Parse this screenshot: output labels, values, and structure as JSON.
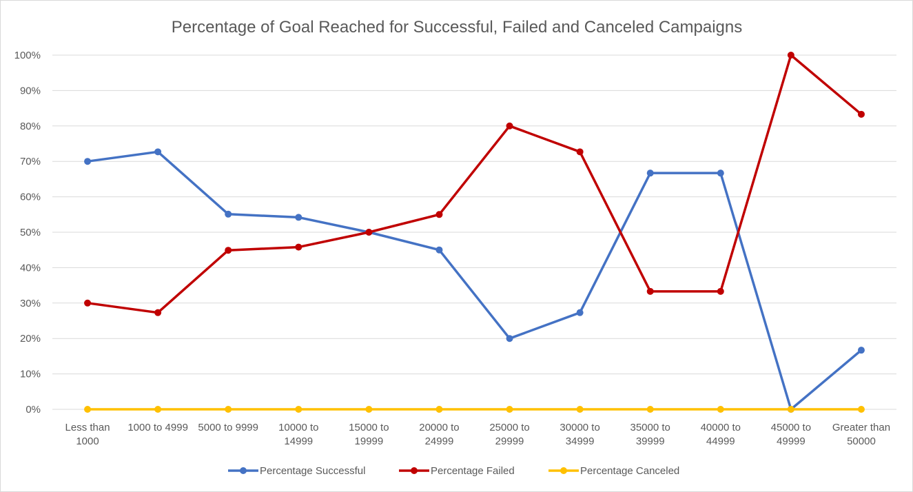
{
  "chart_data": {
    "type": "line",
    "title": "Percentage of Goal Reached for Successful, Failed and Canceled Campaigns",
    "xlabel": "",
    "ylabel": "",
    "categories": [
      [
        "Less than",
        "1000"
      ],
      [
        "1000 to 4999"
      ],
      [
        "5000 to 9999"
      ],
      [
        "10000 to",
        "14999"
      ],
      [
        "15000 to",
        "19999"
      ],
      [
        "20000 to",
        "24999"
      ],
      [
        "25000 to",
        "29999"
      ],
      [
        "30000 to",
        "34999"
      ],
      [
        "35000 to",
        "39999"
      ],
      [
        "40000 to",
        "44999"
      ],
      [
        "45000 to",
        "49999"
      ],
      [
        "Greater than",
        "50000"
      ]
    ],
    "ylim": [
      0,
      100
    ],
    "yticks": [
      "0%",
      "10%",
      "20%",
      "30%",
      "40%",
      "50%",
      "60%",
      "70%",
      "80%",
      "90%",
      "100%"
    ],
    "grid": true,
    "legend_position": "bottom",
    "series": [
      {
        "name": "Percentage Successful",
        "color": "#4472c4",
        "values": [
          70,
          72.7,
          55.1,
          54.2,
          50,
          45,
          20,
          27.3,
          66.7,
          66.7,
          0,
          16.7
        ]
      },
      {
        "name": "Percentage Failed",
        "color": "#c00000",
        "values": [
          30,
          27.3,
          44.9,
          45.8,
          50,
          55,
          80,
          72.7,
          33.3,
          33.3,
          100,
          83.3
        ]
      },
      {
        "name": "Percentage Canceled",
        "color": "#ffc000",
        "values": [
          0,
          0,
          0,
          0,
          0,
          0,
          0,
          0,
          0,
          0,
          0,
          0
        ]
      }
    ]
  }
}
